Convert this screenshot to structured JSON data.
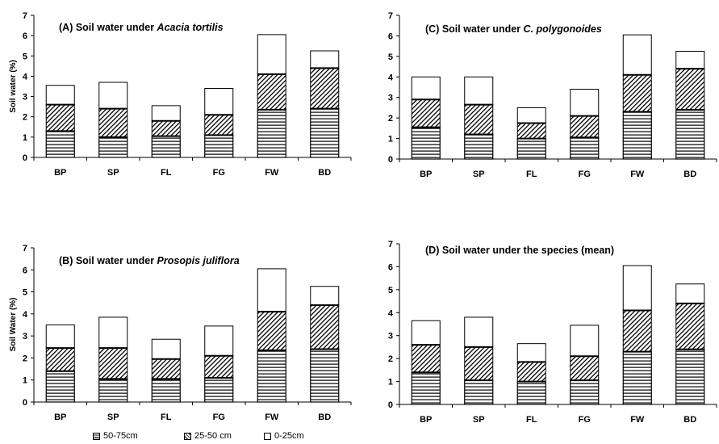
{
  "chart_data": [
    {
      "type": "bar",
      "stacked": true,
      "title_prefix": "(A) Soil water under ",
      "title_species": "Acacia tortilis",
      "ylabel": "Soil water (%)",
      "ylim": [
        0,
        7
      ],
      "yticks": [
        "0",
        "1",
        "2",
        "3",
        "4",
        "5",
        "6",
        "7"
      ],
      "categories": [
        "BP",
        "SP",
        "FL",
        "FG",
        "FW",
        "BD"
      ],
      "series": [
        {
          "name": "50-75cm",
          "values": [
            1.3,
            1.0,
            1.05,
            1.1,
            2.35,
            2.4
          ]
        },
        {
          "name": "25-50 cm",
          "values": [
            1.3,
            1.4,
            0.75,
            1.0,
            1.75,
            2.0
          ]
        },
        {
          "name": "0-25cm",
          "values": [
            0.95,
            1.3,
            0.75,
            1.3,
            1.95,
            0.85
          ]
        }
      ]
    },
    {
      "type": "bar",
      "stacked": true,
      "title_prefix": "(B) Soil water under ",
      "title_species": "Prosopis juliflora",
      "ylabel": "Soil Water (%)",
      "ylim": [
        0,
        7
      ],
      "yticks": [
        "0",
        "1",
        "2",
        "3",
        "4",
        "5",
        "6",
        "7"
      ],
      "categories": [
        "BP",
        "SP",
        "FL",
        "FG",
        "FW",
        "BD"
      ],
      "series": [
        {
          "name": "50-75cm",
          "values": [
            1.4,
            1.05,
            1.05,
            1.1,
            2.35,
            2.4
          ]
        },
        {
          "name": "25-50 cm",
          "values": [
            1.05,
            1.4,
            0.9,
            1.0,
            1.75,
            2.0
          ]
        },
        {
          "name": "0-25cm",
          "values": [
            1.05,
            1.4,
            0.9,
            1.35,
            1.95,
            0.85
          ]
        }
      ]
    },
    {
      "type": "bar",
      "stacked": true,
      "title_prefix": "(C) Soil water under ",
      "title_species": "C. polygonoides",
      "ylabel": "",
      "ylim": [
        0,
        7
      ],
      "yticks": [
        "0",
        "1",
        "2",
        "3",
        "4",
        "5",
        "6",
        "7"
      ],
      "categories": [
        "BP",
        "SP",
        "FL",
        "FG",
        "FW",
        "BD"
      ],
      "series": [
        {
          "name": "50-75cm",
          "values": [
            1.55,
            1.2,
            1.0,
            1.05,
            2.3,
            2.4
          ]
        },
        {
          "name": "25-50 cm",
          "values": [
            1.35,
            1.45,
            0.75,
            1.05,
            1.8,
            2.0
          ]
        },
        {
          "name": "0-25cm",
          "values": [
            1.1,
            1.35,
            0.75,
            1.3,
            1.95,
            0.85
          ]
        }
      ]
    },
    {
      "type": "bar",
      "stacked": true,
      "title_prefix": "(D) Soil water under the species (mean)",
      "title_species": "",
      "ylabel": "",
      "ylim": [
        0,
        7
      ],
      "yticks": [
        "0",
        "1",
        "2",
        "3",
        "4",
        "5",
        "6",
        "7"
      ],
      "categories": [
        "BP",
        "SP",
        "FL",
        "FG",
        "FW",
        "BD"
      ],
      "series": [
        {
          "name": "50-75cm",
          "values": [
            1.4,
            1.05,
            1.0,
            1.05,
            2.3,
            2.4
          ]
        },
        {
          "name": "25-50 cm",
          "values": [
            1.2,
            1.45,
            0.85,
            1.05,
            1.8,
            2.0
          ]
        },
        {
          "name": "0-25cm",
          "values": [
            1.05,
            1.3,
            0.8,
            1.35,
            1.95,
            0.85
          ]
        }
      ]
    }
  ],
  "legend": {
    "items": [
      {
        "label": "50-75cm",
        "pattern": "horizontal-lines"
      },
      {
        "label": "25-50 cm",
        "pattern": "diagonal-hatch"
      },
      {
        "label": "0-25cm",
        "pattern": "white"
      }
    ]
  },
  "colors": {
    "stroke": "#000000",
    "background": "#ffffff"
  }
}
